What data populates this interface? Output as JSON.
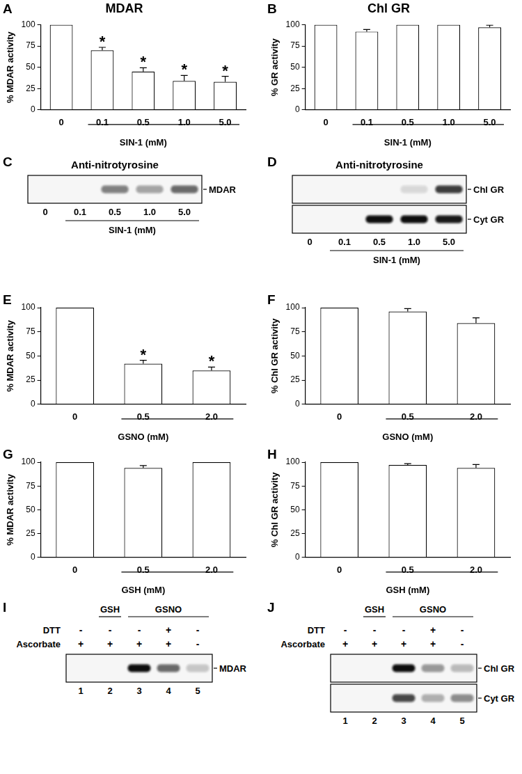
{
  "chart_data": [
    {
      "panel": "A",
      "type": "bar",
      "title": "MDAR",
      "categories": [
        "0",
        "0.1",
        "0.5",
        "1.0",
        "5.0"
      ],
      "values": [
        100,
        70,
        45,
        34,
        33
      ],
      "errors": [
        0,
        3.5,
        4.5,
        6.5,
        6.5
      ],
      "color": "#ffffff",
      "x_label": "SIN-1 (mM)",
      "y_label": "% MDAR activity",
      "ylim": [
        0,
        100
      ],
      "yticks": [
        0,
        25,
        50,
        75,
        100
      ],
      "grid": false,
      "annotations": [
        {
          "x": "0.1",
          "text": "*"
        },
        {
          "x": "0.5",
          "text": "*"
        },
        {
          "x": "1.0",
          "text": "*"
        },
        {
          "x": "5.0",
          "text": "*"
        }
      ]
    },
    {
      "panel": "B",
      "type": "bar",
      "title": "Chl GR",
      "categories": [
        "0",
        "0.1",
        "0.5",
        "1.0",
        "5.0"
      ],
      "values": [
        100,
        92,
        100,
        100,
        97
      ],
      "errors": [
        0,
        2.5,
        0,
        0,
        2.5
      ],
      "color": "#ffffff",
      "x_label": "SIN-1 (mM)",
      "y_label": "% GR activity",
      "ylim": [
        0,
        100
      ],
      "yticks": [
        0,
        25,
        50,
        75,
        100
      ],
      "grid": false
    },
    {
      "panel": "E",
      "type": "bar",
      "categories": [
        "0",
        "0.5",
        "2.0"
      ],
      "values": [
        100,
        42,
        35
      ],
      "errors": [
        0,
        3.5,
        3.5
      ],
      "color": "#ffffff",
      "x_label": "GSNO (mM)",
      "y_label": "% MDAR activity",
      "ylim": [
        0,
        100
      ],
      "yticks": [
        0,
        25,
        50,
        75,
        100
      ],
      "grid": false,
      "annotations": [
        {
          "x": "0.5",
          "text": "*"
        },
        {
          "x": "2.0",
          "text": "*"
        }
      ]
    },
    {
      "panel": "F",
      "type": "bar",
      "categories": [
        "0",
        "0.5",
        "2.0"
      ],
      "values": [
        100,
        96,
        84
      ],
      "errors": [
        0,
        3,
        5.5
      ],
      "color": "#ffffff",
      "x_label": "GSNO (mM)",
      "y_label": "% Chl GR activity",
      "ylim": [
        0,
        100
      ],
      "yticks": [
        0,
        25,
        50,
        75,
        100
      ],
      "grid": false
    },
    {
      "panel": "G",
      "type": "bar",
      "categories": [
        "0",
        "0.5",
        "2.0"
      ],
      "values": [
        100,
        94,
        100
      ],
      "errors": [
        0,
        2.5,
        0
      ],
      "color": "#ffffff",
      "x_label": "GSH (mM)",
      "y_label": "% MDAR activity",
      "ylim": [
        0,
        100
      ],
      "yticks": [
        0,
        25,
        50,
        75,
        100
      ],
      "grid": false
    },
    {
      "panel": "H",
      "type": "bar",
      "categories": [
        "0",
        "0.5",
        "2.0"
      ],
      "values": [
        100,
        97,
        94
      ],
      "errors": [
        0,
        1.5,
        3.5
      ],
      "color": "#ffffff",
      "x_label": "GSH (mM)",
      "y_label": "% Chl GR activity",
      "ylim": [
        0,
        100
      ],
      "yticks": [
        0,
        25,
        50,
        75,
        100
      ],
      "grid": false
    }
  ],
  "blots": [
    {
      "panel": "C",
      "title": "Anti-nitrotyrosine",
      "lanes": [
        "0",
        "0.1",
        "0.5",
        "1.0",
        "5.0"
      ],
      "lane_group": {
        "label": "SIN-1 (mM)",
        "lanes": [
          2,
          3,
          4,
          5
        ]
      },
      "rows": [
        {
          "label": "MDAR",
          "intensity": [
            0,
            0,
            0.5,
            0.35,
            0.6
          ]
        }
      ]
    },
    {
      "panel": "D",
      "title": "Anti-nitrotyrosine",
      "lanes": [
        "0",
        "0.1",
        "0.5",
        "1.0",
        "5.0"
      ],
      "lane_group": {
        "label": "SIN-1 (mM)",
        "lanes": [
          2,
          3,
          4,
          5
        ]
      },
      "rows": [
        {
          "label": "Chl GR",
          "intensity": [
            0,
            0,
            0,
            0.12,
            0.8
          ]
        },
        {
          "label": "Cyt GR",
          "intensity": [
            0,
            0,
            1,
            1,
            0.95
          ]
        }
      ]
    },
    {
      "panel": "I",
      "lanes": [
        "1",
        "2",
        "3",
        "4",
        "5"
      ],
      "groups": [
        {
          "label": "GSH",
          "lanes": [
            2
          ]
        },
        {
          "label": "GSNO",
          "lanes": [
            3,
            4,
            5
          ]
        }
      ],
      "conditions": [
        {
          "label": "DTT",
          "marks": [
            "-",
            "-",
            "-",
            "+",
            "-"
          ]
        },
        {
          "label": "Ascorbate",
          "marks": [
            "+",
            "+",
            "+",
            "+",
            "-"
          ]
        }
      ],
      "rows": [
        {
          "label": "MDAR",
          "intensity": [
            0,
            0,
            1,
            0.6,
            0.2
          ]
        }
      ]
    },
    {
      "panel": "J",
      "lanes": [
        "1",
        "2",
        "3",
        "4",
        "5"
      ],
      "groups": [
        {
          "label": "GSH",
          "lanes": [
            2
          ]
        },
        {
          "label": "GSNO",
          "lanes": [
            3,
            4,
            5
          ]
        }
      ],
      "conditions": [
        {
          "label": "DTT",
          "marks": [
            "-",
            "-",
            "-",
            "+",
            "-"
          ]
        },
        {
          "label": "Ascorbate",
          "marks": [
            "+",
            "+",
            "+",
            "+",
            "-"
          ]
        }
      ],
      "rows": [
        {
          "label": "Chl GR",
          "intensity": [
            0,
            0,
            1,
            0.4,
            0.25
          ]
        },
        {
          "label": "Cyt GR",
          "intensity": [
            0,
            0,
            0.75,
            0.3,
            0.45
          ]
        }
      ]
    }
  ]
}
